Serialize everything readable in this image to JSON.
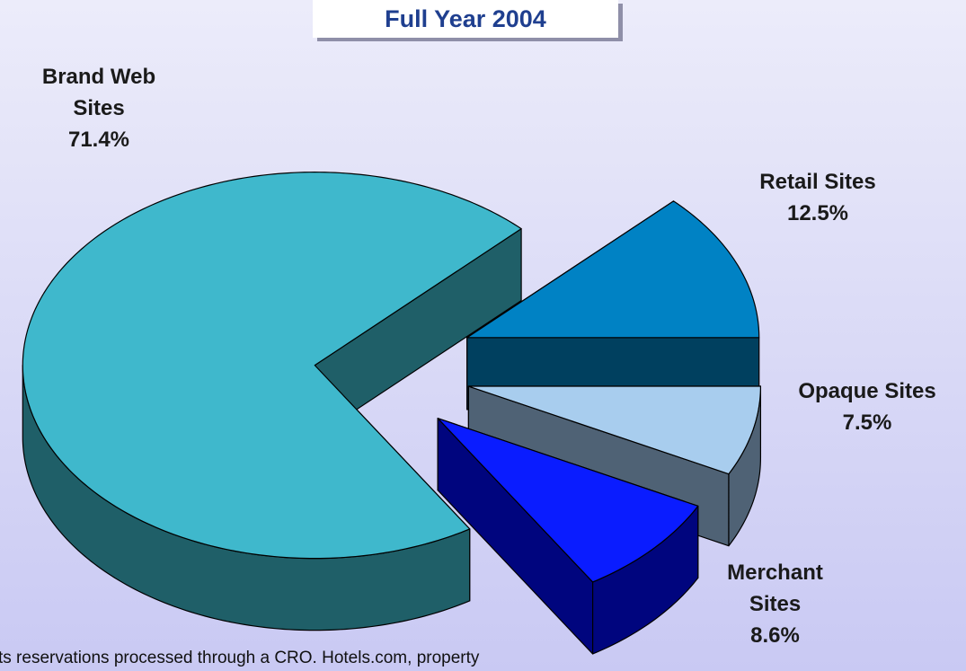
{
  "chart_data": {
    "type": "pie3d",
    "title": "Full Year 2004",
    "categories": [
      "Brand Web Sites",
      "Retail Sites",
      "Opaque Sites",
      "Merchant Sites"
    ],
    "values": [
      71.4,
      12.5,
      7.5,
      8.6
    ],
    "value_labels": [
      "71.4%",
      "12.5%",
      "7.5%",
      "8.6%"
    ],
    "colors": [
      "#3fb8cc",
      "#0082c4",
      "#a8cdee",
      "#0a1cff"
    ],
    "side_colors": [
      "#1f5f68",
      "#00405f",
      "#4f6275",
      "#00057e"
    ],
    "note": "ts reservations processed through a CRO. Hotels.com, property"
  }
}
